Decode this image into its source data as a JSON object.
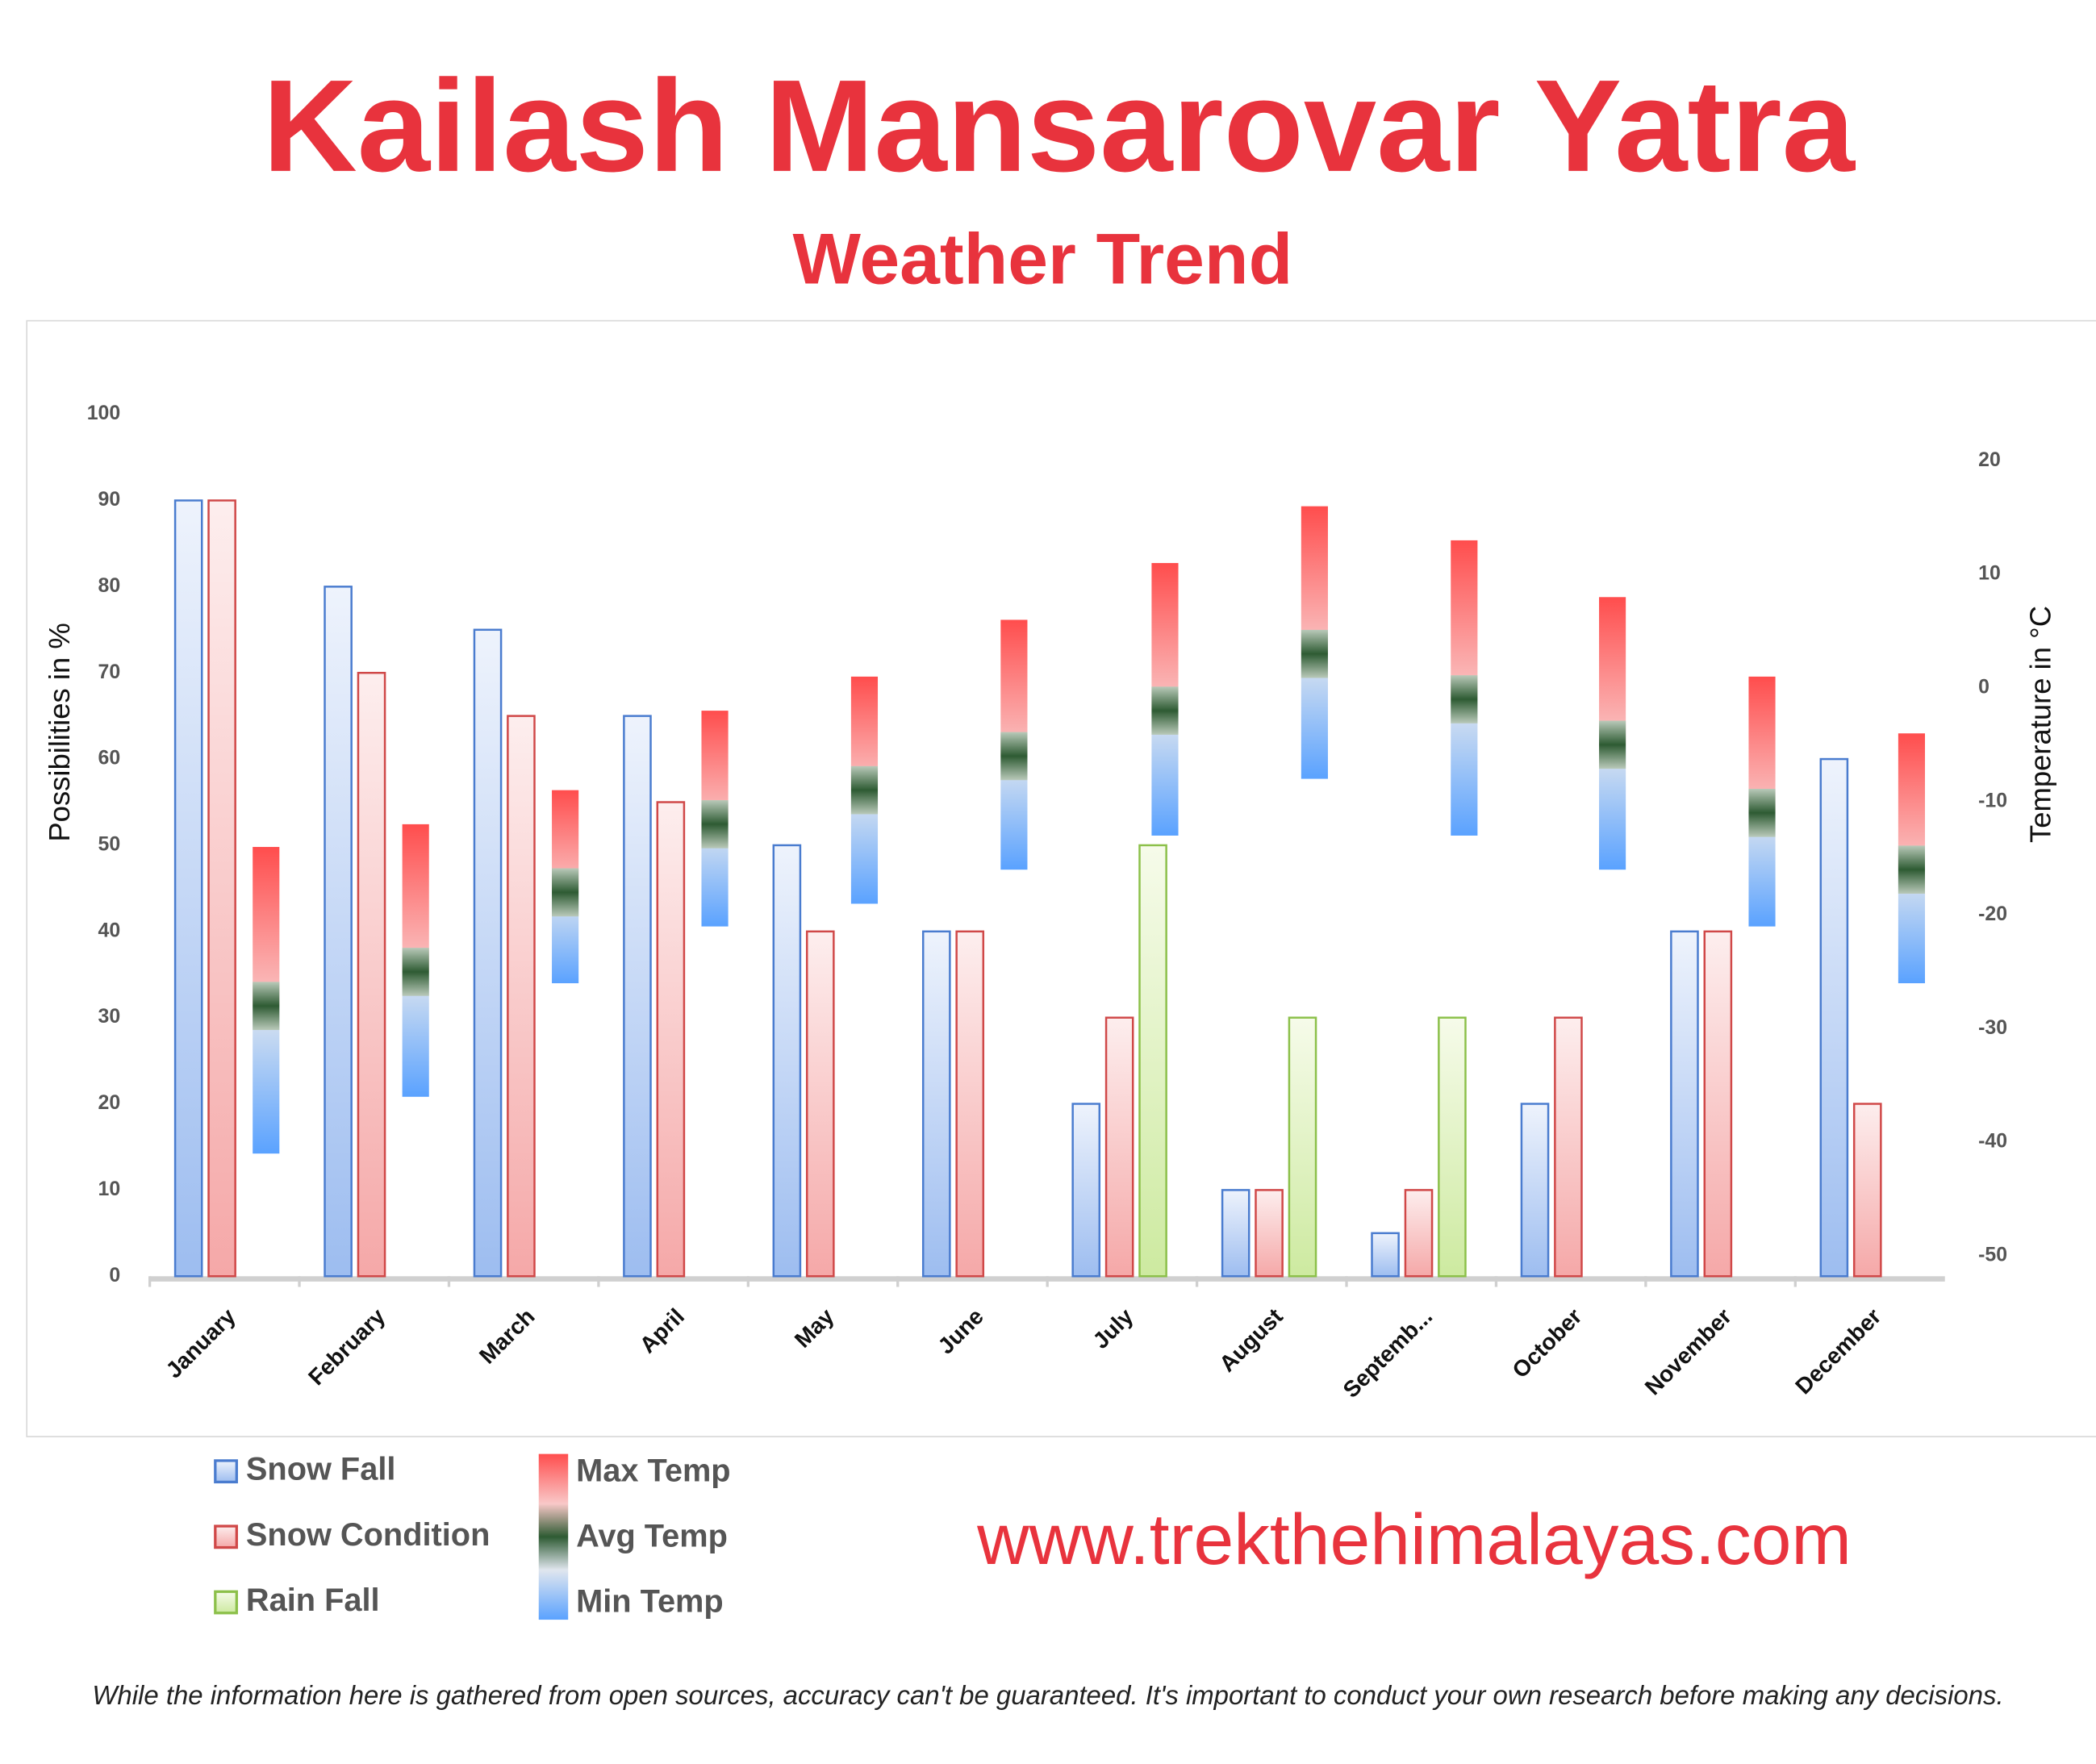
{
  "chart_data": {
    "type": "bar",
    "title": "Kailash Mansarovar Yatra",
    "subtitle": "Weather Trend",
    "y_label": "Possibilities in %",
    "y2_label": "Temperature in °C",
    "website": "www.trekthehimalayas.com",
    "disclaimer": "While the information here is gathered from open sources, accuracy can't be guaranteed. It's important to conduct your own research before making any decisions.",
    "categories": [
      "January",
      "February",
      "March",
      "April",
      "May",
      "June",
      "July",
      "August",
      "Septemb...",
      "October",
      "November",
      "December"
    ],
    "series": [
      {
        "name": "Snow Fall",
        "color": "#4a7ccf",
        "values": [
          90,
          80,
          75,
          65,
          50,
          40,
          20,
          10,
          5,
          20,
          40,
          60
        ]
      },
      {
        "name": "Snow Condition",
        "color": "#d04848",
        "values": [
          90,
          70,
          65,
          55,
          40,
          40,
          30,
          10,
          10,
          30,
          40,
          20
        ]
      },
      {
        "name": "Rain Fall",
        "color": "#8cc04a",
        "values": [
          null,
          null,
          null,
          null,
          null,
          null,
          50,
          30,
          30,
          null,
          null,
          null
        ]
      },
      {
        "name": "Max Temp",
        "color": "#ff4d4d",
        "axis": "y2",
        "values": [
          -14,
          -12,
          -9,
          -2,
          1,
          6,
          11,
          16,
          13,
          8,
          1,
          -4
        ]
      },
      {
        "name": "Avg Temp",
        "color": "#2e5b33",
        "axis": "y2",
        "values": [
          -28,
          -25,
          -18,
          -12,
          -9,
          -6,
          -2,
          3,
          -1,
          -5,
          -11,
          -16
        ]
      },
      {
        "name": "Min Temp",
        "color": "#5aa2ff",
        "axis": "y2",
        "values": [
          -41,
          -36,
          -26,
          -21,
          -19,
          -16,
          -13,
          -8,
          -13,
          -16,
          -21,
          -26
        ]
      }
    ],
    "ylim": [
      0,
      100
    ],
    "yticks": [
      0,
      10,
      20,
      30,
      40,
      50,
      60,
      70,
      80,
      90,
      100
    ],
    "y2lim": [
      -51.8,
      24.1
    ],
    "y2ticks": [
      -50,
      -40,
      -30,
      -20,
      -10,
      0,
      10,
      20
    ]
  }
}
